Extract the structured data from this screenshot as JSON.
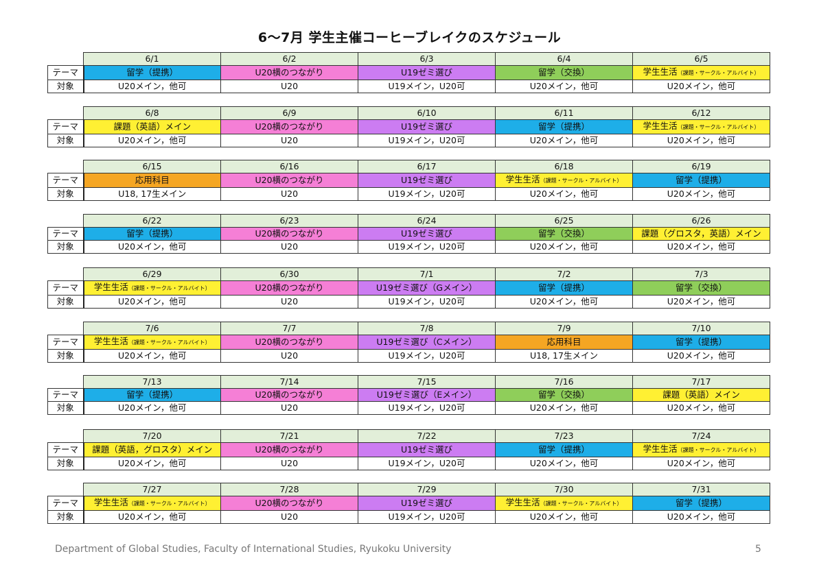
{
  "title": "6〜7月 学生主催コーヒーブレイクのスケジュール",
  "labels": {
    "theme": "テーマ",
    "target": "対象"
  },
  "weeks": [
    {
      "days": [
        {
          "date": "6/1",
          "theme": "留学（提携）",
          "target": "U20メイン，他可",
          "color": "#1eaee8"
        },
        {
          "date": "6/2",
          "theme": "U20横のつながり",
          "target": "U20",
          "color": "#f57fd6"
        },
        {
          "date": "6/3",
          "theme": "U19ゼミ選び",
          "target": "U19メイン，U20可",
          "color": "#cc7cf2"
        },
        {
          "date": "6/4",
          "theme": "留学（交換）",
          "target": "U20メイン，他可",
          "color": "#8fce5a"
        },
        {
          "date": "6/5",
          "theme": "学生生活",
          "theme_small": "（課題・サークル・アルバイト）",
          "target": "U20メイン，他可",
          "color": "#fff033"
        }
      ]
    },
    {
      "days": [
        {
          "date": "6/8",
          "theme": "課題（英語）メイン",
          "target": "U20メイン，他可",
          "color": "#fff033"
        },
        {
          "date": "6/9",
          "theme": "U20横のつながり",
          "target": "U20",
          "color": "#f57fd6"
        },
        {
          "date": "6/10",
          "theme": "U19ゼミ選び",
          "target": "U19メイン，U20可",
          "color": "#cc7cf2"
        },
        {
          "date": "6/11",
          "theme": "留学（提携）",
          "target": "U20メイン，他可",
          "color": "#1eaee8"
        },
        {
          "date": "6/12",
          "theme": "学生生活",
          "theme_small": "（課題・サークル・アルバイト）",
          "target": "U20メイン，他可",
          "color": "#fff033"
        }
      ]
    },
    {
      "days": [
        {
          "date": "6/15",
          "theme": "応用科目",
          "target": "U18, 17生メイン",
          "color": "#f5a623"
        },
        {
          "date": "6/16",
          "theme": "U20横のつながり",
          "target": "U20",
          "color": "#f57fd6"
        },
        {
          "date": "6/17",
          "theme": "U19ゼミ選び",
          "target": "U19メイン，U20可",
          "color": "#cc7cf2"
        },
        {
          "date": "6/18",
          "theme": "学生生活",
          "theme_small": "（課題・サークル・アルバイト）",
          "target": "U20メイン，他可",
          "color": "#fff033"
        },
        {
          "date": "6/19",
          "theme": "留学（提携）",
          "target": "U20メイン，他可",
          "color": "#1eaee8"
        }
      ]
    },
    {
      "days": [
        {
          "date": "6/22",
          "theme": "留学（提携）",
          "target": "U20メイン，他可",
          "color": "#1eaee8"
        },
        {
          "date": "6/23",
          "theme": "U20横のつながり",
          "target": "U20",
          "color": "#f57fd6"
        },
        {
          "date": "6/24",
          "theme": "U19ゼミ選び",
          "target": "U19メイン，U20可",
          "color": "#cc7cf2"
        },
        {
          "date": "6/25",
          "theme": "留学（交換）",
          "target": "U20メイン，他可",
          "color": "#8fce5a"
        },
        {
          "date": "6/26",
          "theme": "課題（グロスタ，英語）メイン",
          "target": "U20メイン，他可",
          "color": "#fff033"
        }
      ]
    },
    {
      "days": [
        {
          "date": "6/29",
          "theme": "学生生活",
          "theme_small": "（課題・サークル・アルバイト）",
          "target": "U20メイン，他可",
          "color": "#fff033"
        },
        {
          "date": "6/30",
          "theme": "U20横のつながり",
          "target": "U20",
          "color": "#f57fd6"
        },
        {
          "date": "7/1",
          "theme": "U19ゼミ選び（Gメイン）",
          "target": "U19メイン，U20可",
          "color": "#cc7cf2"
        },
        {
          "date": "7/2",
          "theme": "留学（提携）",
          "target": "U20メイン，他可",
          "color": "#1eaee8"
        },
        {
          "date": "7/3",
          "theme": "留学（交換）",
          "target": "U20メイン，他可",
          "color": "#8fce5a"
        }
      ]
    },
    {
      "days": [
        {
          "date": "7/6",
          "theme": "学生生活",
          "theme_small": "（課題・サークル・アルバイト）",
          "target": "U20メイン，他可",
          "color": "#fff033"
        },
        {
          "date": "7/7",
          "theme": "U20横のつながり",
          "target": "U20",
          "color": "#f57fd6"
        },
        {
          "date": "7/8",
          "theme": "U19ゼミ選び（Cメイン）",
          "target": "U19メイン，U20可",
          "color": "#cc7cf2"
        },
        {
          "date": "7/9",
          "theme": "応用科目",
          "target": "U18, 17生メイン",
          "color": "#f5a623"
        },
        {
          "date": "7/10",
          "theme": "留学（提携）",
          "target": "U20メイン，他可",
          "color": "#1eaee8"
        }
      ]
    },
    {
      "days": [
        {
          "date": "7/13",
          "theme": "留学（提携）",
          "target": "U20メイン，他可",
          "color": "#1eaee8"
        },
        {
          "date": "7/14",
          "theme": "U20横のつながり",
          "target": "U20",
          "color": "#f57fd6"
        },
        {
          "date": "7/15",
          "theme": "U19ゼミ選び（Eメイン）",
          "target": "U19メイン，U20可",
          "color": "#cc7cf2"
        },
        {
          "date": "7/16",
          "theme": "留学（交換）",
          "target": "U20メイン，他可",
          "color": "#8fce5a"
        },
        {
          "date": "7/17",
          "theme": "課題（英語）メイン",
          "target": "U20メイン，他可",
          "color": "#fff033"
        }
      ]
    },
    {
      "days": [
        {
          "date": "7/20",
          "theme": "課題（英語，グロスタ）メイン",
          "target": "U20メイン，他可",
          "color": "#fff033"
        },
        {
          "date": "7/21",
          "theme": "U20横のつながり",
          "target": "U20",
          "color": "#f57fd6"
        },
        {
          "date": "7/22",
          "theme": "U19ゼミ選び",
          "target": "U19メイン，U20可",
          "color": "#cc7cf2"
        },
        {
          "date": "7/23",
          "theme": "留学（提携）",
          "target": "U20メイン，他可",
          "color": "#1eaee8"
        },
        {
          "date": "7/24",
          "theme": "学生生活",
          "theme_small": "（課題・サークル・アルバイト）",
          "target": "U20メイン，他可",
          "color": "#fff033"
        }
      ]
    },
    {
      "days": [
        {
          "date": "7/27",
          "theme": "学生生活",
          "theme_small": "（課題・サークル・アルバイト）",
          "target": "U20メイン，他可",
          "color": "#fff033"
        },
        {
          "date": "7/28",
          "theme": "U20横のつながり",
          "target": "U20",
          "color": "#f57fd6"
        },
        {
          "date": "7/29",
          "theme": "U19ゼミ選び",
          "target": "U19メイン，U20可",
          "color": "#cc7cf2"
        },
        {
          "date": "7/30",
          "theme": "学生生活",
          "theme_small": "（課題・サークル・アルバイト）",
          "target": "U20メイン，他可",
          "color": "#fff033"
        },
        {
          "date": "7/31",
          "theme": "留学（提携）",
          "target": "U20メイン，他可",
          "color": "#1eaee8"
        }
      ]
    }
  ],
  "footer": "Department of Global Studies, Faculty of International Studies, Ryukoku University",
  "page_number": "5"
}
